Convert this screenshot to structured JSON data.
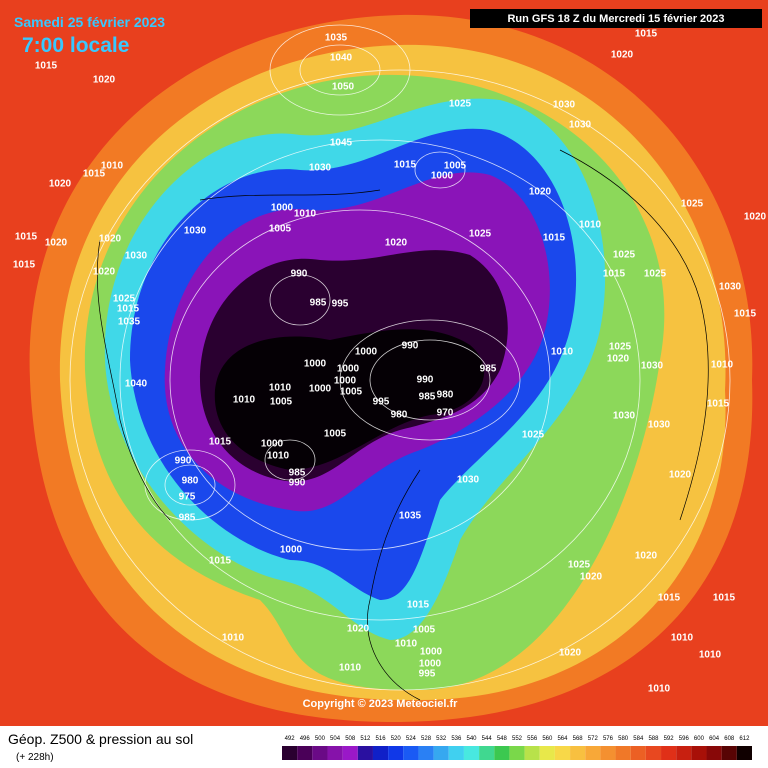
{
  "header": {
    "date": "Samedi 25 février 2023",
    "time": "7:00 locale",
    "run": "Run GFS 18 Z du Mercredi 15 février 2023"
  },
  "footer": {
    "title": "Géop. Z500 & pression au sol",
    "subtitle": "(+ 228h)",
    "copyright": "Copyright © 2023 Meteociel.fr"
  },
  "legend": {
    "ticks": [
      492,
      496,
      500,
      504,
      508,
      512,
      516,
      520,
      524,
      528,
      532,
      536,
      540,
      544,
      548,
      552,
      556,
      560,
      564,
      568,
      572,
      576,
      580,
      584,
      588,
      592,
      596,
      600,
      604,
      608,
      612
    ],
    "colors": [
      "#2a0030",
      "#4a0058",
      "#6a0a86",
      "#8612aa",
      "#9a18c8",
      "#2a10a0",
      "#1020c8",
      "#1038e8",
      "#1a5af4",
      "#2a80f4",
      "#36a8f0",
      "#40d0f0",
      "#48e8e0",
      "#40d890",
      "#3cc850",
      "#7ad84a",
      "#b8e24a",
      "#e8e84a",
      "#f8d848",
      "#f8c040",
      "#f8a838",
      "#f49030",
      "#f07828",
      "#ec6024",
      "#e84820",
      "#e03018",
      "#c82010",
      "#a81008",
      "#880808",
      "#580404",
      "#100000"
    ]
  },
  "pressure_labels": [
    1035,
    1015,
    1015,
    1040,
    1020,
    1020,
    1050,
    1025,
    1030,
    1030,
    1010,
    1015,
    1020,
    1045,
    1015,
    1005,
    1000,
    1030,
    1020,
    1025,
    1000,
    1010,
    1005,
    1030,
    1015,
    1010,
    1015,
    1020,
    1020,
    1025,
    1020,
    1020,
    1015,
    1030,
    1020,
    1025,
    1015,
    1025,
    990,
    1025,
    1015,
    1035,
    985,
    995,
    1030,
    1015,
    1010,
    1025,
    1020,
    1000,
    990,
    1000,
    1000,
    985,
    1030,
    1010,
    1040,
    990,
    1000,
    1010,
    1000,
    1005,
    1010,
    1005,
    995,
    985,
    980,
    970,
    1015,
    980,
    1030,
    1005,
    1025,
    1030,
    1015,
    1000,
    1010,
    985,
    990,
    1030,
    1020,
    990,
    980,
    975,
    985,
    1035,
    1000,
    1020,
    1015,
    1025,
    1020,
    1015,
    1015,
    1015,
    1020,
    1005,
    1010,
    1000,
    1000,
    995,
    1010,
    1010,
    1010,
    1020,
    1010,
    1010
  ]
}
